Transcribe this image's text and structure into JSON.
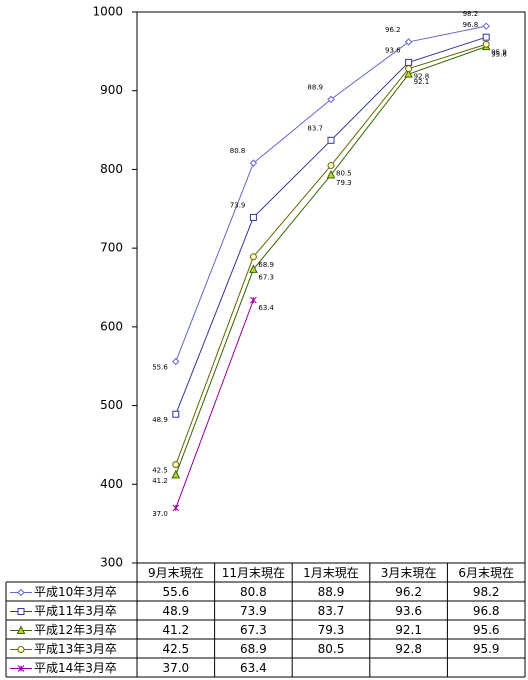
{
  "chart_data": {
    "type": "line",
    "categories": [
      "9月末現在",
      "11月末現在",
      "1月末現在",
      "3月末現在",
      "6月末現在"
    ],
    "ylim": [
      300,
      1000
    ],
    "yticks": [
      300,
      400,
      500,
      600,
      700,
      800,
      900,
      1000
    ],
    "series": [
      {
        "name": "平成10年3月卒",
        "color": "#6666cc",
        "marker": "diamond",
        "values": [
          556,
          808,
          889,
          962,
          982
        ],
        "value_labels": [
          "55.6",
          "80.8",
          "88.9",
          "96.2",
          "98.2"
        ]
      },
      {
        "name": "平成11年3月卒",
        "color": "#333399",
        "marker": "square",
        "values": [
          489,
          739,
          837,
          936,
          968
        ],
        "value_labels": [
          "48.9",
          "73.9",
          "83.7",
          "93.6",
          "96.8"
        ]
      },
      {
        "name": "平成12年3月卒",
        "color": "#336600",
        "marker": "triangle",
        "values": [
          412,
          673,
          793,
          921,
          956
        ],
        "value_labels": [
          "41.2",
          "67.3",
          "79.3",
          "92.1",
          "95.6"
        ]
      },
      {
        "name": "平成13年3月卒",
        "color": "#666600",
        "marker": "circle",
        "values": [
          425,
          689,
          805,
          928,
          959
        ],
        "value_labels": [
          "42.5",
          "68.9",
          "80.5",
          "92.8",
          "95.9"
        ]
      },
      {
        "name": "平成14年3月卒",
        "color": "#990099",
        "marker": "star",
        "values": [
          370,
          634,
          null,
          null,
          null
        ],
        "value_labels": [
          "37.0",
          "63.4",
          null,
          null,
          null
        ]
      }
    ]
  }
}
